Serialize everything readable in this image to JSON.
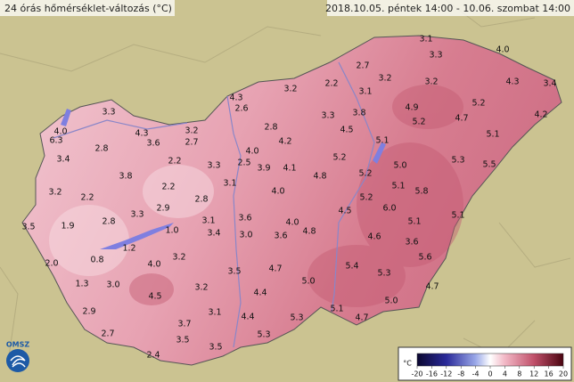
{
  "title": "24 órás hőmérséklet-változás (°C)",
  "period": "2018.10.05. péntek 14:00 - 10.06. szombat 14:00",
  "logo": "OMSZ",
  "stations": [
    "3.1",
    "4.0",
    "3.3",
    "2.7",
    "3.2",
    "3.2",
    "4.3",
    "3.4",
    "3.2",
    "2.2",
    "3.1",
    "4.3",
    "3.3",
    "2.6",
    "4.9",
    "5.2",
    "3.3",
    "3.8",
    "5.2",
    "4.7",
    "4.2",
    "4.0",
    "4.3",
    "2.8",
    "4.5",
    "5.1",
    "6.3",
    "3.2",
    "5.1",
    "3.6",
    "2.8",
    "2.7",
    "4.2",
    "4.0",
    "3.4",
    "2.2",
    "3.3",
    "2.5",
    "3.9",
    "4.1",
    "5.2",
    "5.0",
    "5.3",
    "5.5",
    "3.8",
    "3.1",
    "4.8",
    "5.2",
    "3.2",
    "2.2",
    "2.2",
    "2.8",
    "4.0",
    "5.1",
    "5.8",
    "5.2",
    "2.9",
    "6.0",
    "3.3",
    "2.8",
    "3.1",
    "3.6",
    "4.0",
    "4.5",
    "3.5",
    "1.9",
    "1.0",
    "3.4",
    "3.0",
    "3.6",
    "4.8",
    "4.6",
    "5.1",
    "5.1",
    "3.6",
    "1.2",
    "2.0",
    "0.8",
    "4.0",
    "3.2",
    "5.4",
    "5.6",
    "3.5",
    "4.7",
    "1.3",
    "3.0",
    "3.2",
    "5.0",
    "5.3",
    "4.7",
    "4.5",
    "4.4",
    "2.9",
    "3.1",
    "5.1",
    "5.0",
    "3.7",
    "4.4",
    "5.3",
    "4.7",
    "2.7",
    "3.5",
    "5.3",
    "2.4",
    "3.5"
  ],
  "legend": {
    "unit": "°C",
    "ticks": [
      -20,
      -16,
      -12,
      -8,
      -4,
      0,
      4,
      8,
      12,
      16,
      20
    ]
  }
}
